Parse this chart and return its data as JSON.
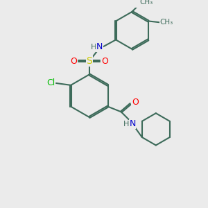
{
  "bg_color": "#ebebeb",
  "bond_color": "#3d6b5a",
  "atom_colors": {
    "N": "#0000cc",
    "O": "#ff0000",
    "S": "#cccc00",
    "Cl": "#00bb00",
    "H": "#3d6b5a",
    "C": "#3d6b5a"
  },
  "figsize": [
    3.0,
    3.0
  ],
  "dpi": 100
}
